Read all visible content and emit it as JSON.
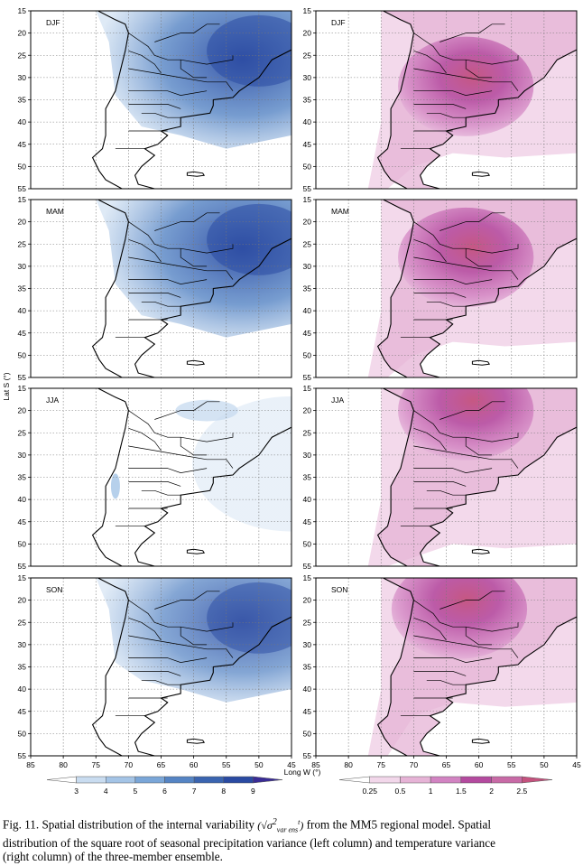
{
  "figure": {
    "panels": [
      {
        "season": "DJF",
        "column": "precipitation"
      },
      {
        "season": "DJF",
        "column": "temperature"
      },
      {
        "season": "MAM",
        "column": "precipitation"
      },
      {
        "season": "MAM",
        "column": "temperature"
      },
      {
        "season": "JJA",
        "column": "precipitation"
      },
      {
        "season": "JJA",
        "column": "temperature"
      },
      {
        "season": "SON",
        "column": "precipitation"
      },
      {
        "season": "SON",
        "column": "temperature"
      }
    ],
    "y_axis": {
      "label": "Lat S (°)",
      "ticks": [
        "15",
        "20",
        "25",
        "30",
        "35",
        "40",
        "45",
        "50",
        "55"
      ]
    },
    "x_axis": {
      "label": "Long W (°)",
      "ticks": [
        "85",
        "80",
        "75",
        "70",
        "65",
        "60",
        "55",
        "50",
        "45"
      ]
    },
    "legend_precip": {
      "labels": [
        "3",
        "4",
        "5",
        "6",
        "7",
        "8",
        "9"
      ],
      "colors": [
        "#ffffff",
        "#c9dcf0",
        "#a4c4e6",
        "#7aa6d8",
        "#5584c4",
        "#3a64b0",
        "#2a4aa2",
        "#3a2c96"
      ]
    },
    "legend_temp": {
      "labels": [
        "0.25",
        "0.5",
        "1",
        "1.5",
        "2",
        "2.5"
      ],
      "colors": [
        "#ffffff",
        "#f2d7ea",
        "#e6b3d6",
        "#d283c2",
        "#b44a9f",
        "#c86aa6",
        "#c4527e"
      ]
    }
  },
  "caption": {
    "part1": "Fig. 11. Spatial distribution of the internal variability",
    "formula_base": "σ",
    "formula_exp": "2",
    "formula_sub": "var ens",
    "formula_sup": "t",
    "part2": "from the MM5 regional model. Spatial",
    "line2": "distribution of the square root of seasonal precipitation variance (left column) and temperature variance",
    "line3": "(right column) of the three-member ensemble."
  }
}
